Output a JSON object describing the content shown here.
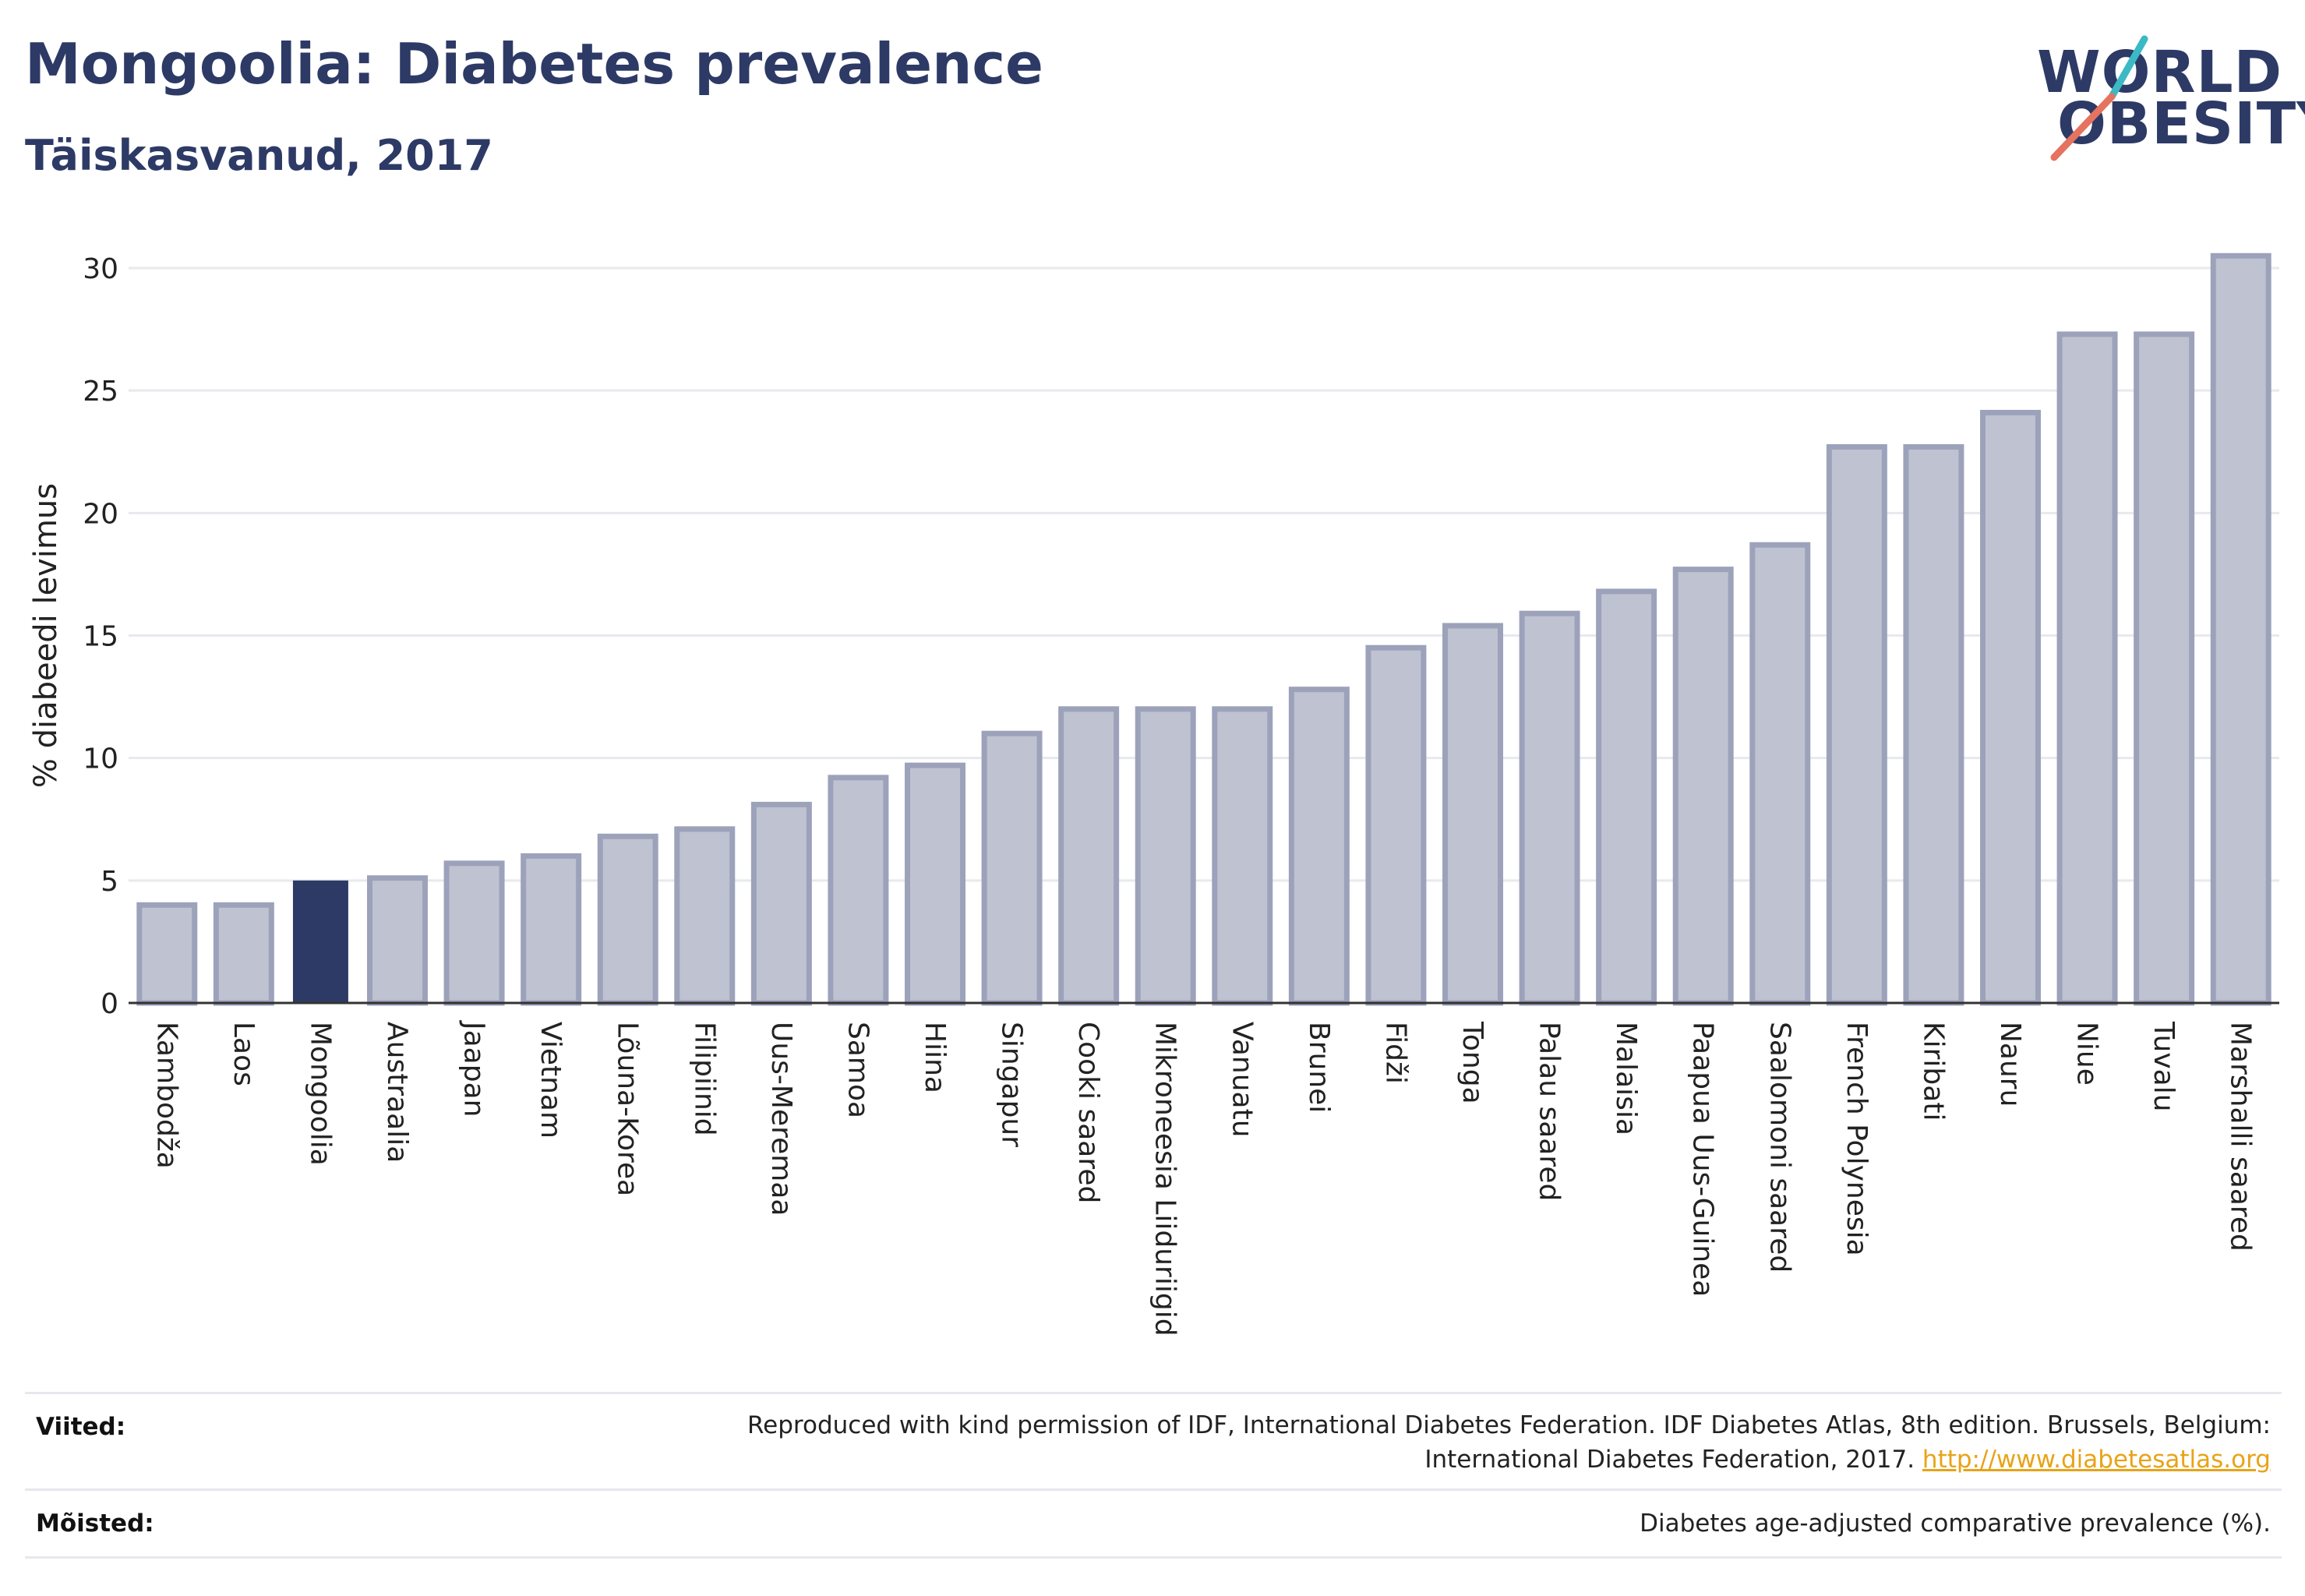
{
  "header": {
    "title": "Mongoolia: Diabetes prevalence",
    "subtitle": "Täiskasvanud, 2017"
  },
  "logo": {
    "line1": "WORLD",
    "line2": "OBESITY"
  },
  "footer": {
    "sources_label": "Viited:",
    "sources_line1": "Reproduced with kind permission of IDF, International Diabetes Federation. IDF Diabetes Atlas, 8th edition. Brussels, Belgium:",
    "sources_line2": "International Diabetes Federation, 2017.",
    "sources_link": "http://www.diabetesatlas.org",
    "definitions_label": "Mõisted:",
    "definitions_text": "Diabetes age-adjusted comparative prevalence (%)."
  },
  "colors": {
    "bar": "#bfc2d0",
    "bar_border": "#9da2bb",
    "highlight": "#2d3a66",
    "grid": "#e8e9ee",
    "axis": "#333333"
  },
  "chart_data": {
    "type": "bar",
    "title": "Mongoolia: Diabetes prevalence",
    "subtitle": "Täiskasvanud, 2017",
    "ylabel": "% diabeedi levimus",
    "xlabel": "",
    "ylim": [
      0,
      32
    ],
    "yticks": [
      0,
      5,
      10,
      15,
      20,
      25,
      30
    ],
    "grid": true,
    "highlight": "Mongoolia",
    "categories": [
      "Kambodža",
      "Laos",
      "Mongoolia",
      "Austraalia",
      "Jaapan",
      "Vietnam",
      "Lõuna-Korea",
      "Filipiinid",
      "Uus-Meremaa",
      "Samoa",
      "Hiina",
      "Singapur",
      "Cooki saared",
      "Mikroneesia Liiduriigid",
      "Vanuatu",
      "Brunei",
      "Fidži",
      "Tonga",
      "Palau saared",
      "Malaisia",
      "Paapua Uus-Guinea",
      "Saalomoni saared",
      "French Polynesia",
      "Kiribati",
      "Nauru",
      "Niue",
      "Tuvalu",
      "Marshalli saared"
    ],
    "values": [
      4.0,
      4.0,
      5.0,
      5.1,
      5.7,
      6.0,
      6.8,
      7.1,
      8.1,
      9.2,
      9.7,
      11.0,
      12.0,
      12.0,
      12.0,
      12.8,
      14.5,
      15.4,
      15.9,
      16.8,
      17.7,
      18.7,
      22.7,
      22.7,
      24.1,
      27.3,
      27.3,
      30.5
    ]
  }
}
